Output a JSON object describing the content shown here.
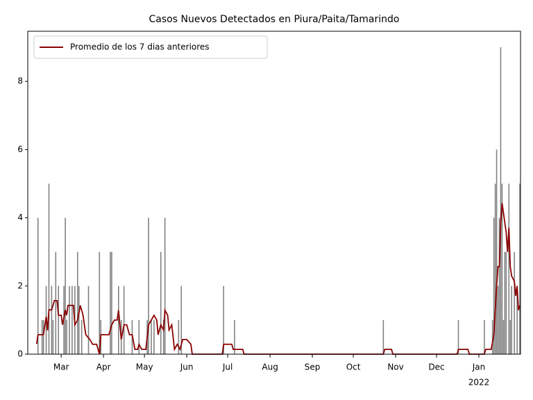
{
  "chart_data": {
    "type": "bar_line",
    "title": "Casos Nuevos Detectados en Piura/Paita/Tamarindo",
    "xlim": [
      3.5,
      364.5
    ],
    "ylim": [
      0,
      9.47
    ],
    "yticks": [
      0,
      2,
      4,
      6,
      8
    ],
    "xticks": [
      {
        "value": 28,
        "label": "Mar"
      },
      {
        "value": 59,
        "label": "Apr"
      },
      {
        "value": 89,
        "label": "May"
      },
      {
        "value": 120,
        "label": "Jun"
      },
      {
        "value": 150,
        "label": "Jul"
      },
      {
        "value": 181,
        "label": "Aug"
      },
      {
        "value": 212,
        "label": "Sep"
      },
      {
        "value": 242,
        "label": "Oct"
      },
      {
        "value": 273,
        "label": "Nov"
      },
      {
        "value": 303,
        "label": "Dec"
      },
      {
        "value": 334,
        "label": "Jan"
      }
    ],
    "year_label": "2022",
    "legend": "upper left",
    "bars": {
      "color": "#808080",
      "x": [
        11,
        14,
        15,
        17,
        19,
        21,
        22,
        24,
        26,
        30,
        31,
        32,
        34,
        36,
        38,
        40,
        41,
        43,
        48,
        56,
        57,
        64,
        65,
        70,
        72,
        74,
        80,
        85,
        91,
        92,
        94,
        96,
        101,
        103,
        104,
        114,
        116,
        147,
        155,
        264,
        319,
        338,
        344,
        345,
        346,
        347,
        348,
        349,
        350,
        351,
        352,
        353,
        354,
        356,
        357,
        358,
        360,
        362,
        364
      ],
      "values": [
        4,
        1,
        1,
        2,
        5,
        2,
        1,
        3,
        2,
        2,
        4,
        1,
        2,
        2,
        2,
        3,
        2,
        1,
        2,
        3,
        1,
        3,
        3,
        2,
        1,
        2,
        1,
        1,
        1,
        4,
        1,
        1,
        3,
        1,
        4,
        1,
        2,
        2,
        1,
        1,
        1,
        1,
        1,
        4,
        5,
        6,
        2,
        4,
        9,
        5,
        1,
        3,
        3,
        5,
        1,
        2,
        3,
        2,
        5
      ]
    },
    "series": [
      {
        "name": "Promedio de los 7 dias anteriores",
        "color": "#8b0000",
        "x": [
          10,
          11,
          15,
          17,
          18,
          19,
          21,
          23,
          25,
          26,
          28,
          29,
          31,
          32,
          33,
          37,
          38,
          40,
          42,
          44,
          46,
          49,
          51,
          54,
          56,
          57,
          63,
          65,
          67,
          69,
          70,
          72,
          74,
          76,
          78,
          80,
          82,
          84,
          85,
          87,
          90,
          92,
          96,
          98,
          99,
          101,
          103,
          104,
          106,
          107,
          109,
          111,
          113,
          115,
          117,
          120,
          123,
          124,
          146,
          147,
          153,
          154,
          161,
          162,
          264,
          265,
          270,
          271,
          318,
          319,
          326,
          327,
          338,
          339,
          343,
          345,
          347,
          348,
          349,
          350,
          351,
          354,
          355,
          356,
          357,
          358,
          360,
          361,
          362,
          363,
          364
        ],
        "values": [
          0.3,
          0.57,
          0.57,
          1.1,
          0.7,
          1.3,
          1.3,
          1.57,
          1.57,
          1.14,
          1.14,
          0.86,
          1.3,
          1.14,
          1.43,
          1.43,
          0.86,
          1.0,
          1.43,
          1.14,
          0.57,
          0.43,
          0.29,
          0.29,
          0,
          0.57,
          0.57,
          0.86,
          1.0,
          1.0,
          1.29,
          0.43,
          0.86,
          0.86,
          0.57,
          0.57,
          0.14,
          0.14,
          0.29,
          0.14,
          0.14,
          0.86,
          1.14,
          1.0,
          0.57,
          0.86,
          0.71,
          1.29,
          1.14,
          0.71,
          0.86,
          0.14,
          0.29,
          0.14,
          0.43,
          0.43,
          0.29,
          0,
          0,
          0.29,
          0.29,
          0.14,
          0.14,
          0,
          0,
          0.14,
          0.14,
          0,
          0,
          0.14,
          0.14,
          0,
          0,
          0.14,
          0.14,
          0.57,
          2.0,
          2.57,
          2.57,
          3.86,
          4.43,
          3.57,
          3.0,
          3.71,
          2.57,
          2.29,
          2.14,
          1.71,
          2.0,
          1.29,
          1.43
        ]
      }
    ]
  }
}
